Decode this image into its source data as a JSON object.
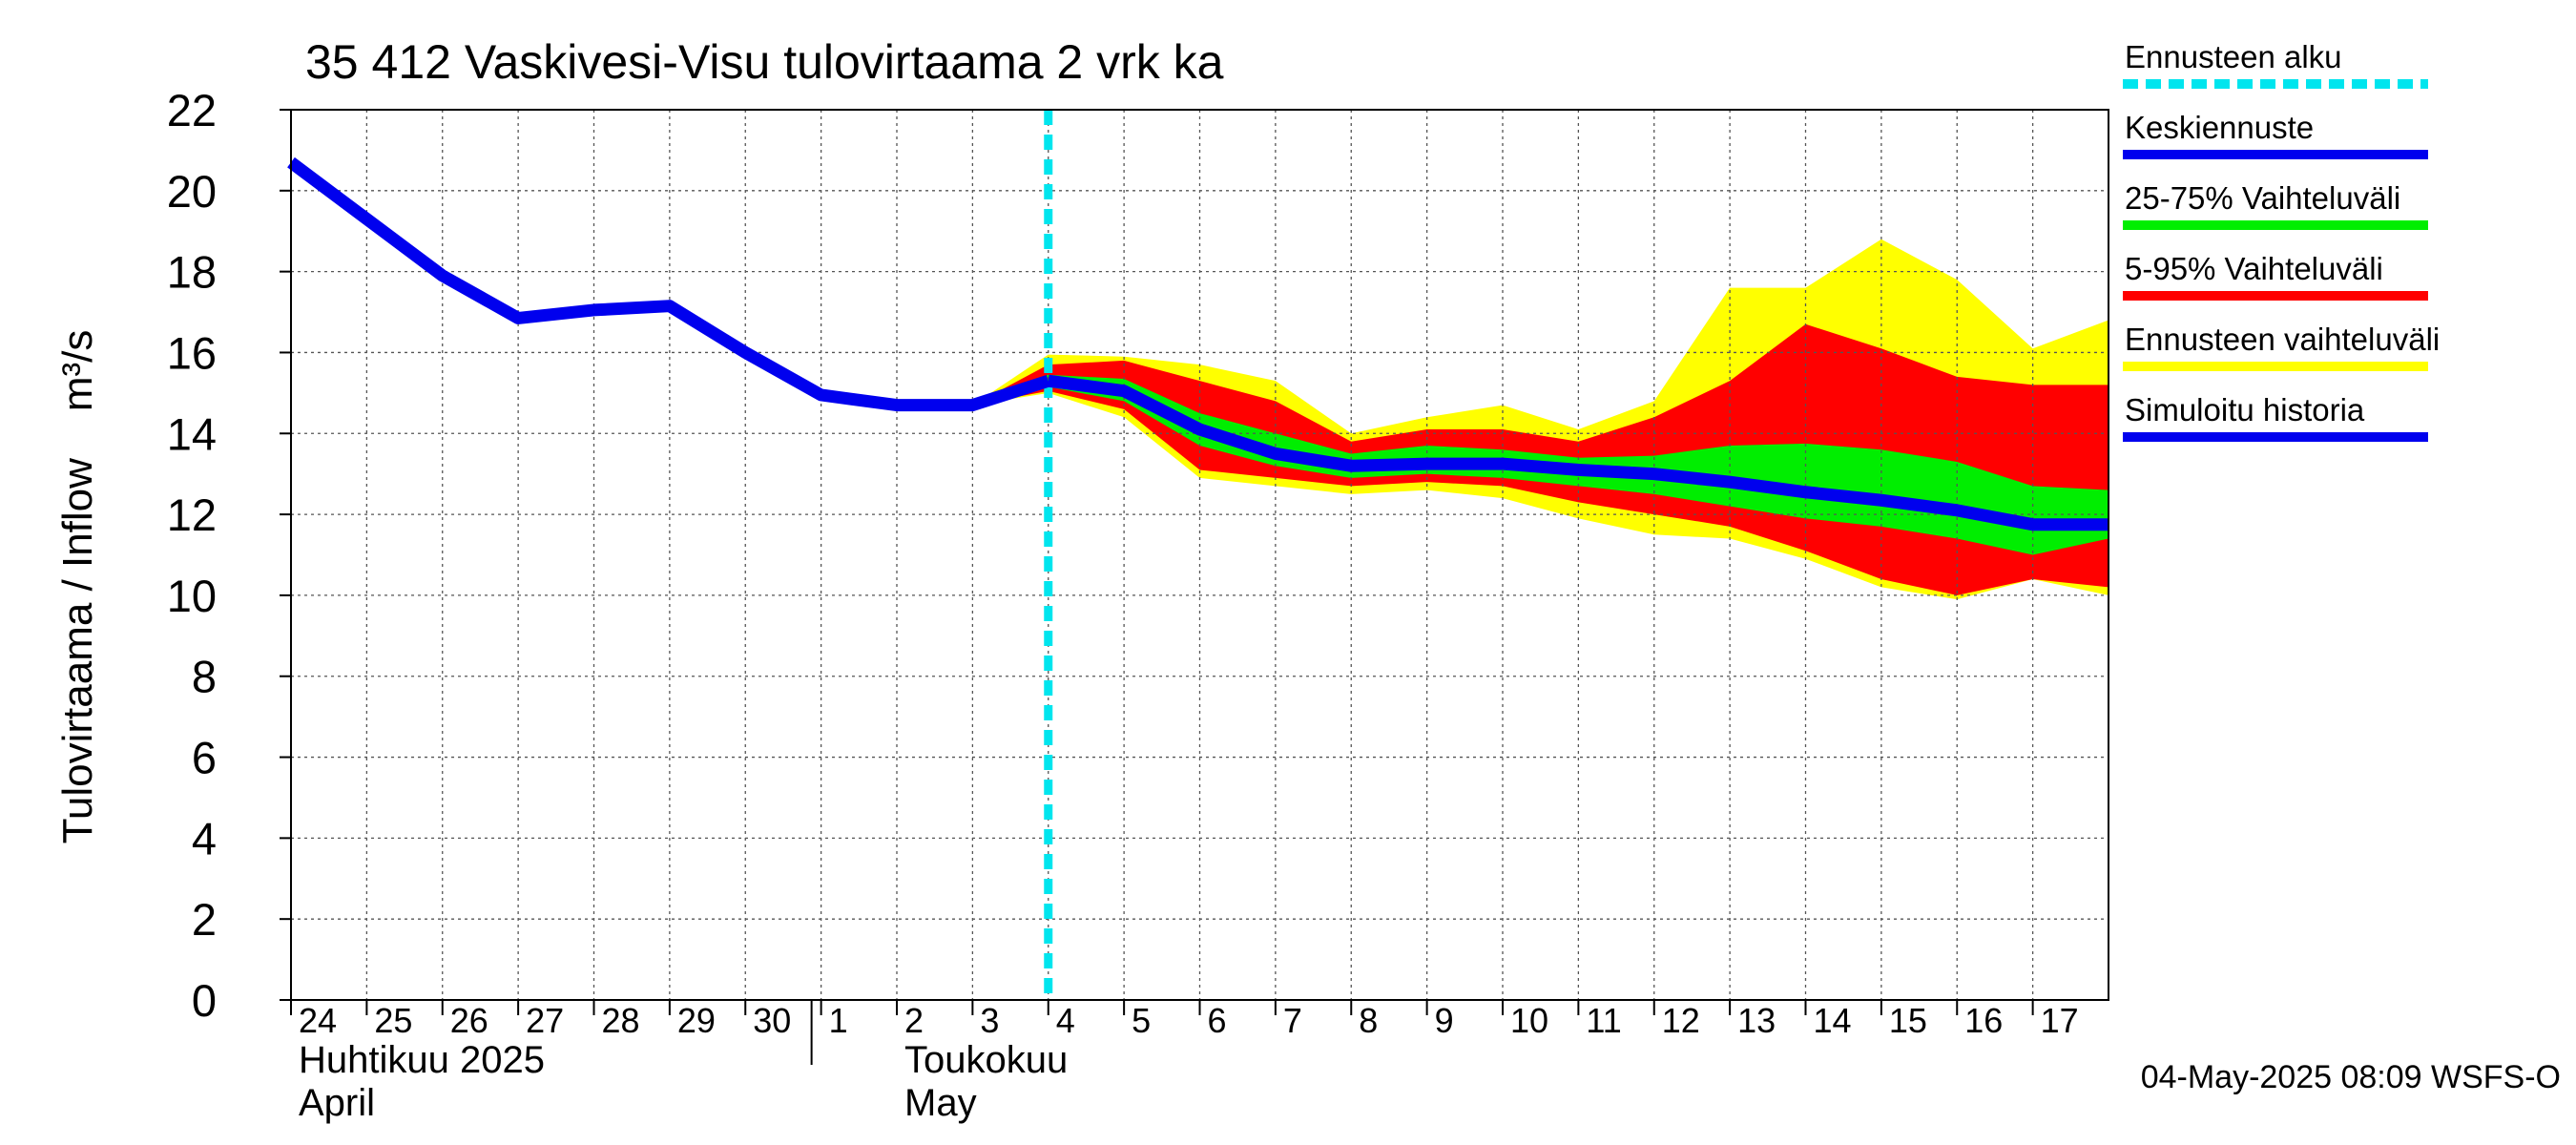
{
  "chart_data": {
    "type": "area",
    "title": "35 412 Vaskivesi-Visu tulovirtaama 2 vrk ka",
    "ylabel": "Tulovirtaama / Inflow    m³/s",
    "ylim": [
      0,
      22
    ],
    "yticks": [
      "0",
      "2",
      "4",
      "6",
      "8",
      "10",
      "12",
      "14",
      "16",
      "18",
      "20",
      "22"
    ],
    "xlim": [
      0,
      24
    ],
    "xticks": [
      "24",
      "25",
      "26",
      "27",
      "28",
      "29",
      "30",
      "1",
      "2",
      "3",
      "4",
      "5",
      "6",
      "7",
      "8",
      "9",
      "10",
      "11",
      "12",
      "13",
      "14",
      "15",
      "16",
      "17"
    ],
    "month_labels": [
      {
        "line1": "Huhtikuu  2025",
        "line2": "April",
        "at": 0
      },
      {
        "line1": "Toukokuu",
        "line2": "May",
        "at": 8
      }
    ],
    "month_divider_at": 7,
    "forecast_start_x": 10,
    "grid": true,
    "legend_position": "right",
    "legend": [
      {
        "label": "Ennusteen alku",
        "color": "#00e5ee",
        "style": "dashed"
      },
      {
        "label": "Keskiennuste",
        "color": "#0000ee",
        "style": "solid"
      },
      {
        "label": "25-75% Vaihteluväli",
        "color": "#00ee00",
        "style": "solid"
      },
      {
        "label": "5-95% Vaihteluväli",
        "color": "#ff0000",
        "style": "solid"
      },
      {
        "label": "Ennusteen vaihteluväli",
        "color": "#ffff00",
        "style": "solid"
      },
      {
        "label": "Simuloitu historia",
        "color": "#0000ee",
        "style": "solid"
      }
    ],
    "series": [
      {
        "name": "Simuloitu historia",
        "color": "#0000ee",
        "x": [
          0,
          1,
          2,
          3,
          4,
          5,
          6,
          7,
          8,
          9,
          10
        ],
        "y": [
          20.7,
          19.3,
          17.9,
          16.85,
          17.05,
          17.15,
          16.0,
          14.95,
          14.7,
          14.7,
          15.3
        ]
      },
      {
        "name": "Ennusteen vaihteluväli",
        "color": "#ffff00",
        "x": [
          9,
          10,
          11,
          12,
          13,
          14,
          15,
          16,
          17,
          18,
          19,
          20,
          21,
          22,
          23,
          24
        ],
        "upper": [
          14.7,
          15.95,
          15.9,
          15.7,
          15.3,
          14.0,
          14.4,
          14.7,
          14.1,
          14.8,
          17.6,
          17.6,
          18.8,
          17.8,
          16.1,
          16.8
        ],
        "lower": [
          14.7,
          15.0,
          14.4,
          12.9,
          12.7,
          12.5,
          12.6,
          12.4,
          11.9,
          11.5,
          11.4,
          10.9,
          10.2,
          9.9,
          10.4,
          10.0
        ]
      },
      {
        "name": "5-95% Vaihteluväli",
        "color": "#ff0000",
        "x": [
          9,
          10,
          11,
          12,
          13,
          14,
          15,
          16,
          17,
          18,
          19,
          20,
          21,
          22,
          23,
          24
        ],
        "upper": [
          14.7,
          15.7,
          15.8,
          15.3,
          14.8,
          13.8,
          14.1,
          14.1,
          13.8,
          14.4,
          15.3,
          16.7,
          16.1,
          15.4,
          15.2,
          15.2
        ],
        "lower": [
          14.7,
          15.05,
          14.6,
          13.1,
          12.9,
          12.7,
          12.8,
          12.7,
          12.3,
          12.0,
          11.7,
          11.1,
          10.4,
          10.0,
          10.4,
          10.2
        ]
      },
      {
        "name": "25-75% Vaihteluväli",
        "color": "#00ee00",
        "x": [
          9,
          10,
          11,
          12,
          13,
          14,
          15,
          16,
          17,
          18,
          19,
          20,
          21,
          22,
          23,
          24
        ],
        "upper": [
          14.7,
          15.45,
          15.35,
          14.5,
          14.0,
          13.5,
          13.7,
          13.6,
          13.4,
          13.45,
          13.7,
          13.75,
          13.6,
          13.3,
          12.7,
          12.6
        ],
        "lower": [
          14.7,
          15.15,
          14.8,
          13.7,
          13.2,
          12.9,
          13.0,
          12.9,
          12.7,
          12.5,
          12.2,
          11.9,
          11.7,
          11.4,
          11.0,
          11.4
        ]
      },
      {
        "name": "Keskiennuste",
        "color": "#0000ee",
        "x": [
          10,
          11,
          12,
          13,
          14,
          15,
          16,
          17,
          18,
          19,
          20,
          21,
          22,
          23,
          24
        ],
        "y": [
          15.3,
          15.05,
          14.1,
          13.5,
          13.2,
          13.25,
          13.25,
          13.1,
          13.0,
          12.8,
          12.55,
          12.35,
          12.1,
          11.75,
          11.75
        ]
      }
    ]
  },
  "footer": "04-May-2025 08:09 WSFS-O"
}
